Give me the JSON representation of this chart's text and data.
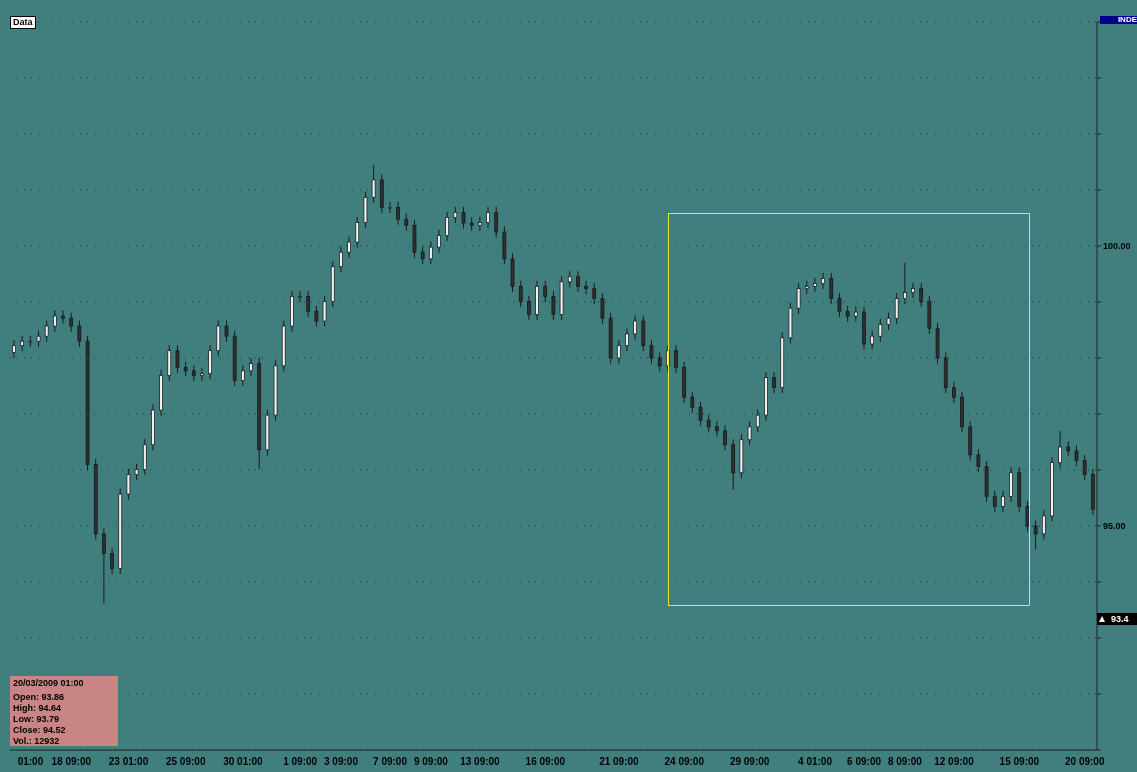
{
  "chart_data": {
    "type": "candlestick",
    "categories": [
      null,
      null,
      "01:00",
      null,
      null,
      null,
      null,
      "18 09:00",
      null,
      null,
      null,
      null,
      null,
      null,
      "23 01:00",
      null,
      null,
      null,
      null,
      null,
      null,
      "25 09:00",
      null,
      null,
      null,
      null,
      null,
      null,
      "30 01:00",
      null,
      null,
      null,
      null,
      null,
      null,
      "1 09:00",
      null,
      null,
      null,
      null,
      "3 09:00",
      null,
      null,
      null,
      null,
      null,
      "7 09:00",
      null,
      null,
      null,
      null,
      "9 09:00",
      null,
      null,
      null,
      null,
      null,
      "13 09:00",
      null,
      null,
      null,
      null,
      null,
      null,
      null,
      "16 09:00",
      null,
      null,
      null,
      null,
      null,
      null,
      null,
      null,
      "21 09:00",
      null,
      null,
      null,
      null,
      null,
      null,
      null,
      "24 09:00",
      null,
      null,
      null,
      null,
      null,
      null,
      null,
      "29 09:00",
      null,
      null,
      null,
      null,
      null,
      null,
      null,
      "4 01:00",
      null,
      null,
      null,
      null,
      null,
      "6 09:00",
      null,
      null,
      null,
      null,
      "8 09:00",
      null,
      null,
      null,
      null,
      null,
      "12 09:00",
      null,
      null,
      null,
      null,
      null,
      null,
      null,
      "15 09:00",
      null,
      null,
      null,
      null,
      null,
      null,
      null,
      "20 09:00",
      null
    ],
    "ohlc": [
      [
        98.1,
        98.32,
        98.0,
        98.22
      ],
      [
        98.22,
        98.4,
        98.12,
        98.3
      ],
      [
        98.3,
        98.4,
        98.2,
        98.3
      ],
      [
        98.3,
        98.49,
        98.2,
        98.39
      ],
      [
        98.39,
        98.67,
        98.29,
        98.57
      ],
      [
        98.57,
        98.85,
        98.47,
        98.75
      ],
      [
        98.75,
        98.85,
        98.61,
        98.71
      ],
      [
        98.71,
        98.81,
        98.47,
        98.57
      ],
      [
        98.57,
        98.67,
        98.2,
        98.3
      ],
      [
        98.3,
        98.4,
        96.0,
        96.1
      ],
      [
        96.1,
        96.2,
        94.76,
        94.86
      ],
      [
        94.86,
        94.96,
        93.62,
        94.51
      ],
      [
        94.51,
        94.61,
        94.14,
        94.24
      ],
      [
        94.24,
        95.67,
        94.14,
        95.57
      ],
      [
        95.57,
        96.02,
        95.47,
        95.92
      ],
      [
        95.92,
        96.11,
        95.82,
        96.01
      ],
      [
        96.01,
        96.55,
        95.91,
        96.45
      ],
      [
        96.45,
        97.17,
        96.35,
        97.07
      ],
      [
        97.07,
        97.79,
        96.97,
        97.69
      ],
      [
        97.69,
        98.23,
        97.59,
        98.13
      ],
      [
        98.13,
        98.23,
        97.73,
        97.83
      ],
      [
        97.83,
        97.93,
        97.67,
        97.77
      ],
      [
        97.77,
        97.87,
        97.59,
        97.69
      ],
      [
        97.69,
        97.82,
        97.59,
        97.72
      ],
      [
        97.72,
        98.23,
        97.62,
        98.13
      ],
      [
        98.13,
        98.67,
        98.03,
        98.57
      ],
      [
        98.57,
        98.67,
        98.29,
        98.39
      ],
      [
        98.39,
        98.49,
        97.5,
        97.6
      ],
      [
        97.6,
        97.87,
        97.5,
        97.77
      ],
      [
        97.77,
        98.0,
        97.67,
        97.9
      ],
      [
        97.9,
        98.0,
        96.01,
        96.36
      ],
      [
        96.36,
        97.08,
        96.26,
        96.98
      ],
      [
        96.98,
        97.96,
        96.88,
        97.86
      ],
      [
        97.86,
        98.67,
        97.76,
        98.57
      ],
      [
        98.57,
        99.2,
        98.47,
        99.1
      ],
      [
        99.1,
        99.2,
        99.0,
        99.1
      ],
      [
        99.1,
        99.2,
        98.73,
        98.83
      ],
      [
        98.83,
        98.93,
        98.56,
        98.66
      ],
      [
        98.66,
        99.11,
        98.56,
        99.01
      ],
      [
        99.01,
        99.73,
        98.91,
        99.63
      ],
      [
        99.63,
        99.99,
        99.53,
        99.89
      ],
      [
        99.89,
        100.17,
        99.79,
        100.07
      ],
      [
        100.07,
        100.52,
        99.97,
        100.42
      ],
      [
        100.42,
        100.97,
        100.32,
        100.87
      ],
      [
        100.87,
        101.45,
        100.77,
        101.18
      ],
      [
        101.18,
        101.28,
        100.59,
        100.69
      ],
      [
        100.69,
        100.79,
        100.59,
        100.69
      ],
      [
        100.69,
        100.79,
        100.38,
        100.48
      ],
      [
        100.48,
        100.58,
        100.27,
        100.37
      ],
      [
        100.37,
        100.47,
        99.79,
        99.89
      ],
      [
        99.89,
        99.99,
        99.67,
        99.77
      ],
      [
        99.77,
        100.08,
        99.67,
        99.98
      ],
      [
        99.98,
        100.29,
        99.88,
        100.19
      ],
      [
        100.19,
        100.61,
        100.09,
        100.51
      ],
      [
        100.51,
        100.7,
        100.41,
        100.6
      ],
      [
        100.6,
        100.7,
        100.31,
        100.41
      ],
      [
        100.41,
        100.51,
        100.27,
        100.37
      ],
      [
        100.37,
        100.52,
        100.27,
        100.42
      ],
      [
        100.42,
        100.7,
        100.32,
        100.6
      ],
      [
        100.6,
        100.7,
        100.15,
        100.25
      ],
      [
        100.25,
        100.35,
        99.67,
        99.77
      ],
      [
        99.77,
        99.87,
        99.18,
        99.28
      ],
      [
        99.28,
        99.38,
        98.91,
        99.01
      ],
      [
        99.01,
        99.11,
        98.68,
        98.78
      ],
      [
        98.78,
        99.38,
        98.68,
        99.28
      ],
      [
        99.28,
        99.38,
        99.0,
        99.1
      ],
      [
        99.1,
        99.2,
        98.68,
        98.78
      ],
      [
        98.78,
        99.46,
        98.68,
        99.36
      ],
      [
        99.36,
        99.55,
        99.26,
        99.45
      ],
      [
        99.45,
        99.55,
        99.18,
        99.28
      ],
      [
        99.28,
        99.38,
        99.14,
        99.24
      ],
      [
        99.24,
        99.34,
        98.96,
        99.06
      ],
      [
        99.06,
        99.16,
        98.61,
        98.71
      ],
      [
        98.71,
        98.81,
        97.9,
        98.0
      ],
      [
        98.0,
        98.32,
        97.9,
        98.22
      ],
      [
        98.22,
        98.53,
        98.12,
        98.43
      ],
      [
        98.43,
        98.76,
        98.33,
        98.66
      ],
      [
        98.66,
        98.76,
        98.12,
        98.22
      ],
      [
        98.22,
        98.32,
        97.9,
        98.0
      ],
      [
        98.0,
        98.1,
        97.76,
        97.86
      ],
      [
        97.86,
        98.23,
        97.76,
        98.13
      ],
      [
        98.13,
        98.23,
        97.73,
        97.83
      ],
      [
        97.83,
        97.93,
        97.2,
        97.3
      ],
      [
        97.3,
        97.4,
        97.02,
        97.12
      ],
      [
        97.12,
        97.22,
        96.79,
        96.89
      ],
      [
        96.89,
        96.99,
        96.67,
        96.77
      ],
      [
        96.77,
        96.87,
        96.6,
        96.7
      ],
      [
        96.7,
        96.8,
        96.35,
        96.45
      ],
      [
        96.45,
        96.55,
        95.65,
        95.95
      ],
      [
        95.95,
        96.64,
        95.85,
        96.54
      ],
      [
        96.54,
        96.87,
        96.44,
        96.77
      ],
      [
        96.77,
        97.08,
        96.67,
        96.98
      ],
      [
        96.98,
        97.75,
        96.88,
        97.65
      ],
      [
        97.65,
        97.75,
        97.37,
        97.47
      ],
      [
        97.47,
        98.46,
        97.37,
        98.36
      ],
      [
        98.36,
        98.99,
        98.26,
        98.89
      ],
      [
        98.89,
        99.34,
        98.79,
        99.24
      ],
      [
        99.24,
        99.38,
        99.14,
        99.28
      ],
      [
        99.28,
        99.43,
        99.18,
        99.33
      ],
      [
        99.33,
        99.52,
        99.23,
        99.42
      ],
      [
        99.42,
        99.52,
        98.96,
        99.06
      ],
      [
        99.06,
        99.16,
        98.73,
        98.83
      ],
      [
        98.83,
        98.93,
        98.65,
        98.75
      ],
      [
        98.75,
        98.92,
        98.65,
        98.82
      ],
      [
        98.82,
        98.92,
        98.15,
        98.25
      ],
      [
        98.25,
        98.49,
        98.15,
        98.39
      ],
      [
        98.39,
        98.7,
        98.29,
        98.6
      ],
      [
        98.6,
        98.81,
        98.5,
        98.71
      ],
      [
        98.71,
        99.16,
        98.61,
        99.06
      ],
      [
        99.06,
        99.7,
        98.96,
        99.17
      ],
      [
        99.17,
        99.34,
        99.07,
        99.24
      ],
      [
        99.24,
        99.34,
        98.91,
        99.01
      ],
      [
        99.01,
        99.11,
        98.43,
        98.53
      ],
      [
        98.53,
        98.63,
        97.9,
        98.0
      ],
      [
        98.0,
        98.1,
        97.37,
        97.47
      ],
      [
        97.47,
        97.57,
        97.2,
        97.3
      ],
      [
        97.3,
        97.4,
        96.67,
        96.77
      ],
      [
        96.77,
        96.87,
        96.17,
        96.27
      ],
      [
        96.27,
        96.37,
        95.96,
        96.06
      ],
      [
        96.06,
        96.16,
        95.43,
        95.53
      ],
      [
        95.53,
        95.63,
        95.25,
        95.35
      ],
      [
        95.35,
        95.63,
        95.25,
        95.53
      ],
      [
        95.53,
        96.05,
        95.43,
        95.95
      ],
      [
        95.95,
        96.05,
        95.25,
        95.35
      ],
      [
        95.35,
        95.45,
        94.9,
        95.0
      ],
      [
        95.0,
        95.1,
        94.58,
        94.86
      ],
      [
        94.86,
        95.28,
        94.76,
        95.18
      ],
      [
        95.18,
        96.23,
        95.08,
        96.13
      ],
      [
        96.13,
        96.7,
        96.03,
        96.41
      ],
      [
        96.41,
        96.51,
        96.24,
        96.34
      ],
      [
        96.34,
        96.44,
        96.07,
        96.17
      ],
      [
        96.17,
        96.27,
        95.82,
        95.92
      ],
      [
        95.92,
        96.02,
        95.2,
        95.3
      ]
    ],
    "ylim": [
      91,
      104
    ],
    "yticks": [
      {
        "value": 91,
        "label": null
      },
      {
        "value": 92,
        "label": null
      },
      {
        "value": 93,
        "label": null
      },
      {
        "value": 94,
        "label": null
      },
      {
        "value": 95,
        "label": "95.00"
      },
      {
        "value": 96,
        "label": null
      },
      {
        "value": 97,
        "label": null
      },
      {
        "value": 98,
        "label": null
      },
      {
        "value": 99,
        "label": null
      },
      {
        "value": 100,
        "label": "100.00"
      },
      {
        "value": 101,
        "label": null
      },
      {
        "value": 102,
        "label": null
      },
      {
        "value": 103,
        "label": null
      },
      {
        "value": 104,
        "label": null
      }
    ],
    "grid": "y",
    "legend": false,
    "annotations": [
      "Data",
      "INDE",
      "93.4",
      "20/03/2009 01:00",
      "Open: 93.86",
      "High: 94.64",
      "Low: 93.79",
      "Close: 94.52",
      "Vol.: 12932"
    ]
  }
}
